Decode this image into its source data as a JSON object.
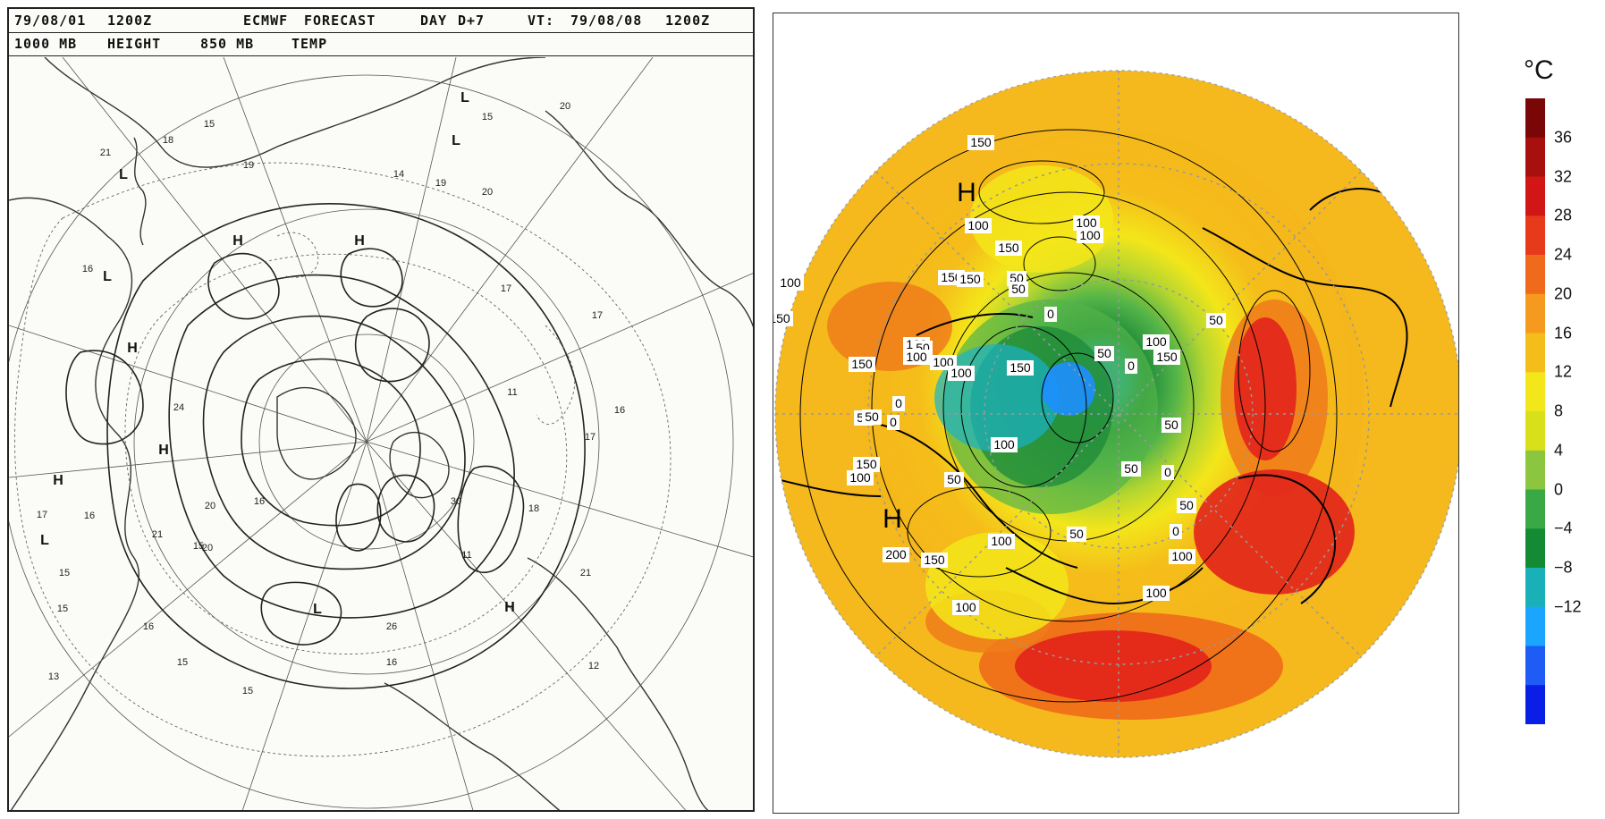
{
  "left_map": {
    "header_row1": {
      "date": "79/08/01",
      "time": "1200Z",
      "model": "ECMWF",
      "product": "FORECAST",
      "day_label": "DAY",
      "day_value": "D+7",
      "vt_label": "VT:",
      "vt_date": "79/08/08",
      "vt_time": "1200Z"
    },
    "header_row2": {
      "level1": "1000 MB",
      "var1": "HEIGHT",
      "level2": "850 MB",
      "var2": "TEMP"
    },
    "pressure_labels": [
      {
        "text": "H"
      },
      {
        "text": "H"
      },
      {
        "text": "H"
      },
      {
        "text": "H"
      },
      {
        "text": "H"
      },
      {
        "text": "H"
      },
      {
        "text": "L"
      },
      {
        "text": "L"
      },
      {
        "text": "L"
      },
      {
        "text": "L"
      },
      {
        "text": "L"
      },
      {
        "text": "L"
      }
    ],
    "temperature_labels": [
      "15",
      "18",
      "19",
      "14",
      "19",
      "20",
      "20",
      "15",
      "16",
      "21",
      "17",
      "17",
      "11",
      "16",
      "17",
      "16",
      "20",
      "20",
      "21",
      "15",
      "15",
      "15",
      "16",
      "26",
      "18",
      "13",
      "15",
      "15",
      "16",
      "12",
      "30",
      "11",
      "21",
      "17",
      "16",
      "24"
    ]
  },
  "right_map": {
    "pressure_labels": [
      "H",
      "H"
    ],
    "contour_labels": [
      "150",
      "100",
      "150",
      "100",
      "100",
      "150",
      "50",
      "150",
      "100",
      "150",
      "50",
      "0",
      "100",
      "50",
      "150",
      "0",
      "50",
      "100",
      "150",
      "100",
      "100",
      "50",
      "0",
      "50",
      "100",
      "150",
      "100",
      "50",
      "0",
      "150",
      "100",
      "50",
      "200",
      "150",
      "100",
      "100",
      "100",
      "0",
      "50",
      "50",
      "0",
      "50",
      "100",
      "50"
    ],
    "colors": {
      "cold_blue": "#1e8fff",
      "cyan": "#1ab2c8",
      "dark_green": "#1f8c3a",
      "green": "#53b448",
      "yellow_green": "#b5d630",
      "yellow": "#f3e61a",
      "orange": "#f5a623",
      "dark_orange": "#ef7d1a",
      "red": "#e2241b",
      "dark_red": "#9b1111"
    }
  },
  "colorbar": {
    "unit": "°C",
    "ticks": [
      "36",
      "32",
      "28",
      "24",
      "20",
      "16",
      "12",
      "8",
      "4",
      "0",
      "−4",
      "−8",
      "−12"
    ],
    "colors": [
      "#0a1fe6",
      "#1e5cf5",
      "#1aa6ff",
      "#1ab0b8",
      "#158a35",
      "#3aa845",
      "#8cc63e",
      "#d8e01a",
      "#f3e61a",
      "#f5bd1a",
      "#f59a1f",
      "#ef6a1a",
      "#e73a1a",
      "#d21515",
      "#a80f0f",
      "#7a0707"
    ]
  }
}
